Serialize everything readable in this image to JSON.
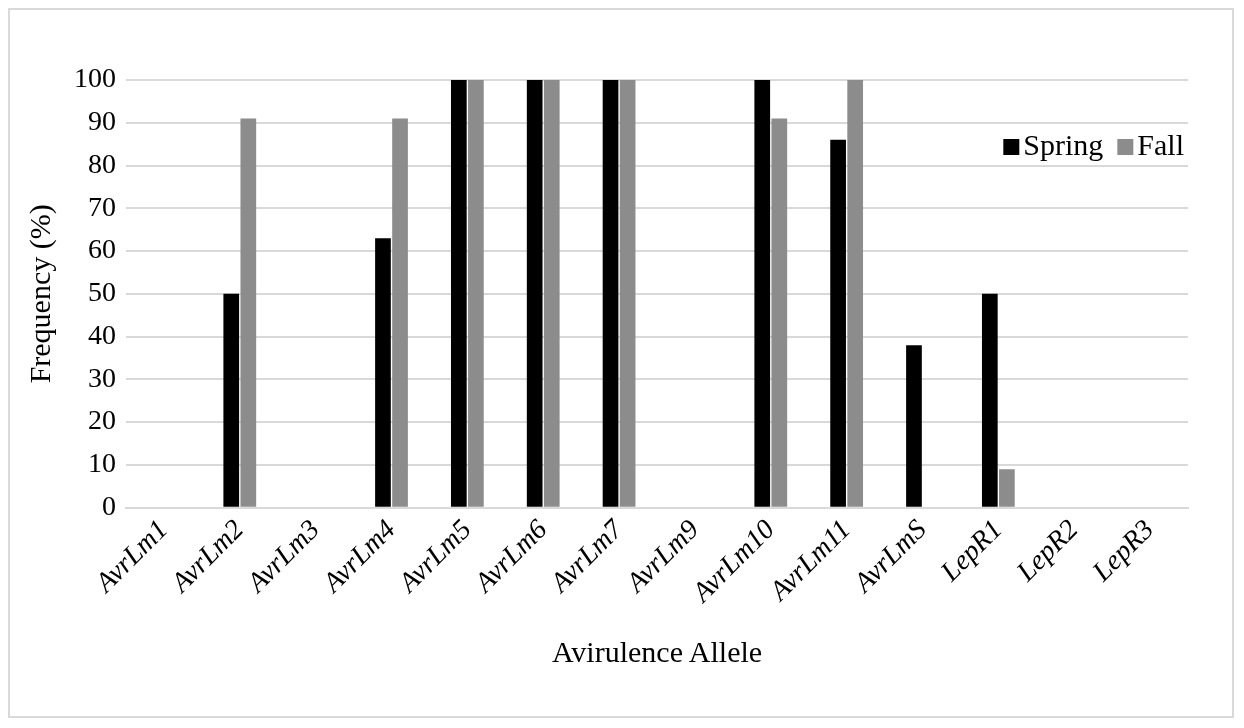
{
  "chart_data": {
    "type": "bar",
    "categories": [
      "AvrLm1",
      "AvrLm2",
      "AvrLm3",
      "AvrLm4",
      "AvrLm5",
      "AvrLm6",
      "AvrLm7",
      "AvrLm9",
      "AvrLm10",
      "AvrLm11",
      "AvrLmS",
      "LepR1",
      "LepR2",
      "LepR3"
    ],
    "series": [
      {
        "name": "Spring",
        "color": "#000000",
        "values": [
          0,
          50,
          0,
          63,
          100,
          100,
          100,
          0,
          100,
          86,
          38,
          50,
          0,
          0
        ]
      },
      {
        "name": "Fall",
        "color": "#8c8c8c",
        "values": [
          0,
          91,
          0,
          91,
          100,
          100,
          100,
          0,
          91,
          100,
          0,
          9,
          0,
          0
        ]
      }
    ],
    "xlabel": "Avirulence Allele",
    "ylabel": "Frequency (%)",
    "ylim": [
      0,
      100
    ],
    "yticks": [
      0,
      10,
      20,
      30,
      40,
      50,
      60,
      70,
      80,
      90,
      100
    ],
    "grid": "y",
    "legend": "top right"
  }
}
